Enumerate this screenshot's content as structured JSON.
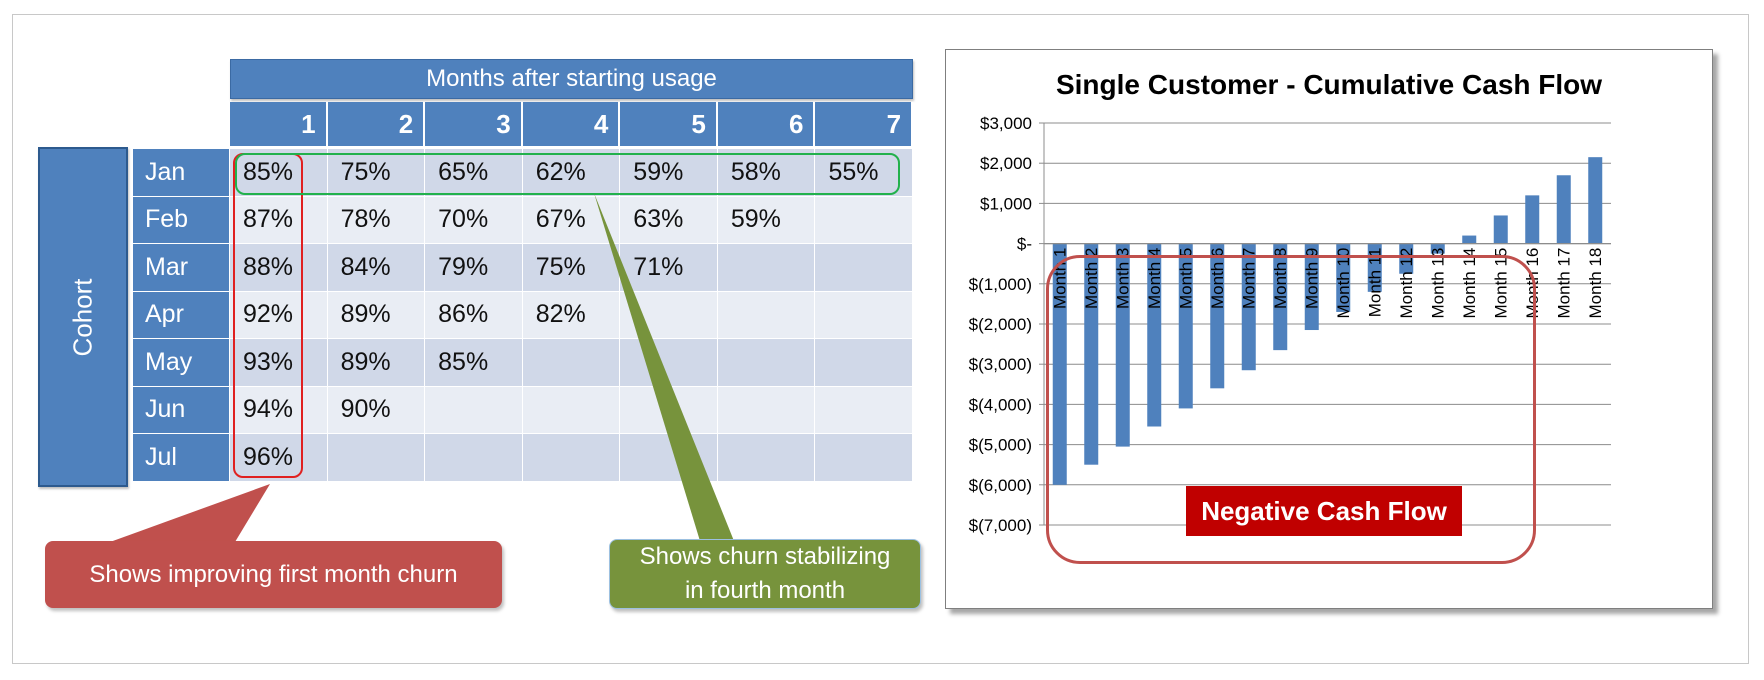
{
  "cohort_table": {
    "header": "Months after starting usage",
    "side_label": "Cohort",
    "columns": [
      "1",
      "2",
      "3",
      "4",
      "5",
      "6",
      "7"
    ],
    "rows": [
      {
        "label": "Jan",
        "values": [
          "85%",
          "75%",
          "65%",
          "62%",
          "59%",
          "58%",
          "55%"
        ]
      },
      {
        "label": "Feb",
        "values": [
          "87%",
          "78%",
          "70%",
          "67%",
          "63%",
          "59%",
          ""
        ]
      },
      {
        "label": "Mar",
        "values": [
          "88%",
          "84%",
          "79%",
          "75%",
          "71%",
          "",
          ""
        ]
      },
      {
        "label": "Apr",
        "values": [
          "92%",
          "89%",
          "86%",
          "82%",
          "",
          "",
          ""
        ]
      },
      {
        "label": "May",
        "values": [
          "93%",
          "89%",
          "85%",
          "",
          "",
          "",
          ""
        ]
      },
      {
        "label": "Jun",
        "values": [
          "94%",
          "90%",
          "",
          "",
          "",
          "",
          ""
        ]
      },
      {
        "label": "Jul",
        "values": [
          "96%",
          "",
          "",
          "",
          "",
          "",
          ""
        ]
      }
    ]
  },
  "callouts": {
    "first_month": "Shows improving first month churn",
    "stabilizing_line1": "Shows churn stabilizing",
    "stabilizing_line2": "in fourth month"
  },
  "colors": {
    "table_blue": "#4f81bd",
    "highlight_red": "#e02020",
    "highlight_green": "#22b14c",
    "bar_blue": "#4f81bd",
    "neg_label_red": "#c00000"
  },
  "chart_data": {
    "type": "bar",
    "title": "Single Customer - Cumulative Cash Flow",
    "categories": [
      "Month 1",
      "Month 2",
      "Month 3",
      "Month 4",
      "Month 5",
      "Month 6",
      "Month 7",
      "Month 8",
      "Month 9",
      "Month 10",
      "Month 11",
      "Month 12",
      "Month 13",
      "Month 14",
      "Month 15",
      "Month 16",
      "Month 17",
      "Month 18"
    ],
    "values": [
      -6000,
      -5500,
      -5050,
      -4550,
      -4100,
      -3600,
      -3150,
      -2650,
      -2150,
      -1700,
      -1200,
      -750,
      -250,
      200,
      700,
      1200,
      1700,
      2150
    ],
    "ylim": [
      -7000,
      3000
    ],
    "yticks": [
      3000,
      2000,
      1000,
      0,
      -1000,
      -2000,
      -3000,
      -4000,
      -5000,
      -6000,
      -7000
    ],
    "ytick_labels": [
      "$3,000",
      "$2,000",
      "$1,000",
      "$-",
      "$(1,000)",
      "$(2,000)",
      "$(3,000)",
      "$(4,000)",
      "$(5,000)",
      "$(6,000)",
      "$(7,000)"
    ],
    "grid": true,
    "annotation": "Negative Cash Flow"
  }
}
